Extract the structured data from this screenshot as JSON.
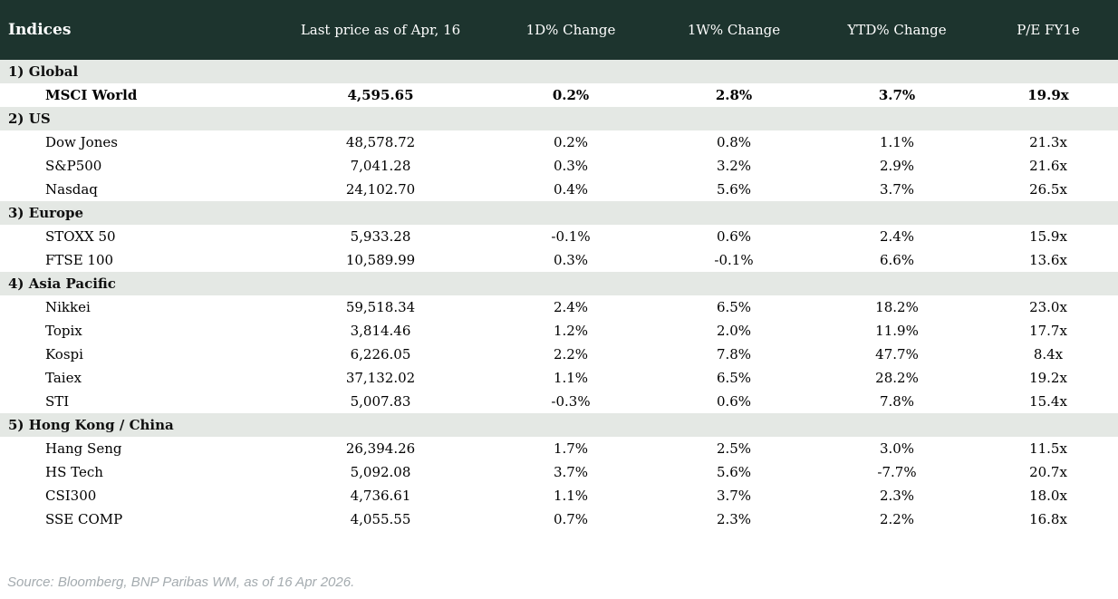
{
  "header": {
    "columns": [
      "Indices",
      "Last price as of Apr, 16",
      "1D% Change",
      "1W% Change",
      "YTD% Change",
      "P/E FY1e"
    ]
  },
  "sections": [
    {
      "label": "1) Global",
      "rows": [
        {
          "name": "MSCI World",
          "price": "4,595.65",
          "d1": "0.2%",
          "w1": "2.8%",
          "ytd": "3.7%",
          "pe": "19.9x",
          "bold": true
        }
      ]
    },
    {
      "label": "2) US",
      "rows": [
        {
          "name": "Dow Jones",
          "price": "48,578.72",
          "d1": "0.2%",
          "w1": "0.8%",
          "ytd": "1.1%",
          "pe": "21.3x",
          "bold": false
        },
        {
          "name": "S&P500",
          "price": "7,041.28",
          "d1": "0.3%",
          "w1": "3.2%",
          "ytd": "2.9%",
          "pe": "21.6x",
          "bold": false
        },
        {
          "name": "Nasdaq",
          "price": "24,102.70",
          "d1": "0.4%",
          "w1": "5.6%",
          "ytd": "3.7%",
          "pe": "26.5x",
          "bold": false
        }
      ]
    },
    {
      "label": "3) Europe",
      "rows": [
        {
          "name": "STOXX 50",
          "price": "5,933.28",
          "d1": "-0.1%",
          "w1": "0.6%",
          "ytd": "2.4%",
          "pe": "15.9x",
          "bold": false
        },
        {
          "name": "FTSE 100",
          "price": "10,589.99",
          "d1": "0.3%",
          "w1": "-0.1%",
          "ytd": "6.6%",
          "pe": "13.6x",
          "bold": false
        }
      ]
    },
    {
      "label": "4) Asia Pacific",
      "rows": [
        {
          "name": "Nikkei",
          "price": "59,518.34",
          "d1": "2.4%",
          "w1": "6.5%",
          "ytd": "18.2%",
          "pe": "23.0x",
          "bold": false
        },
        {
          "name": "Topix",
          "price": "3,814.46",
          "d1": "1.2%",
          "w1": "2.0%",
          "ytd": "11.9%",
          "pe": "17.7x",
          "bold": false
        },
        {
          "name": "Kospi",
          "price": "6,226.05",
          "d1": "2.2%",
          "w1": "7.8%",
          "ytd": "47.7%",
          "pe": "8.4x",
          "bold": false
        },
        {
          "name": "Taiex",
          "price": "37,132.02",
          "d1": "1.1%",
          "w1": "6.5%",
          "ytd": "28.2%",
          "pe": "19.2x",
          "bold": false
        },
        {
          "name": "STI",
          "price": "5,007.83",
          "d1": "-0.3%",
          "w1": "0.6%",
          "ytd": "7.8%",
          "pe": "15.4x",
          "bold": false
        }
      ]
    },
    {
      "label": "5) Hong Kong / China",
      "rows": [
        {
          "name": "Hang Seng",
          "price": "26,394.26",
          "d1": "1.7%",
          "w1": "2.5%",
          "ytd": "3.0%",
          "pe": "11.5x",
          "bold": false
        },
        {
          "name": "HS Tech",
          "price": "5,092.08",
          "d1": "3.7%",
          "w1": "5.6%",
          "ytd": "-7.7%",
          "pe": "20.7x",
          "bold": false
        },
        {
          "name": "CSI300",
          "price": "4,736.61",
          "d1": "1.1%",
          "w1": "3.7%",
          "ytd": "2.3%",
          "pe": "18.0x",
          "bold": false
        },
        {
          "name": "SSE COMP",
          "price": "4,055.55",
          "d1": "0.7%",
          "w1": "2.3%",
          "ytd": "2.2%",
          "pe": "16.8x",
          "bold": false
        }
      ]
    }
  ],
  "footer": {
    "source": "Source: Bloomberg, BNP Paribas WM, as of 16 Apr 2026."
  },
  "colors": {
    "header_bg": "#1d342e",
    "group_row_bg": "#e4e8e4",
    "positive": "#0e8627",
    "negative": "#c11630",
    "source_text": "#a4abaf"
  }
}
